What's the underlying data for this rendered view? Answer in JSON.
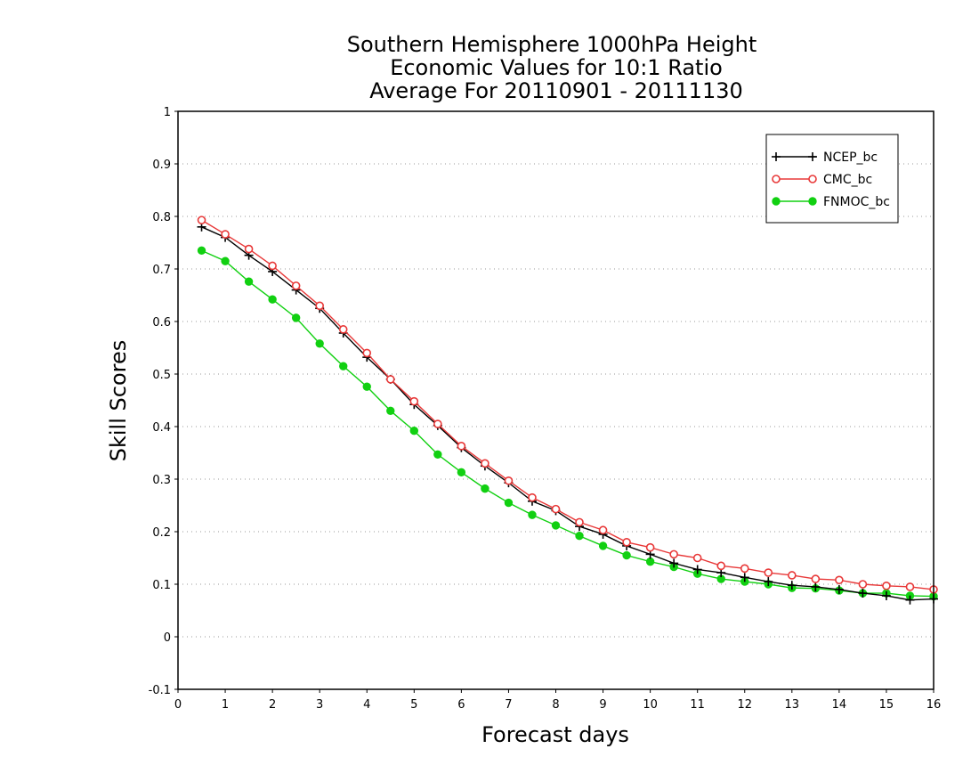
{
  "chart_data": {
    "type": "line",
    "title": [
      "Southern Hemisphere 1000hPa Height",
      "Economic Values for 10:1 Ratio",
      "Average For 20110901 - 20111130"
    ],
    "xlabel": "Forecast days",
    "ylabel": "Skill Scores",
    "xlim": [
      0,
      16
    ],
    "ylim": [
      -0.1,
      1
    ],
    "xticks": [
      "0",
      "1",
      "2",
      "3",
      "4",
      "5",
      "6",
      "7",
      "8",
      "9",
      "10",
      "11",
      "12",
      "13",
      "14",
      "15",
      "16"
    ],
    "yticks": [
      "-0.1",
      "0",
      "0.1",
      "0.2",
      "0.3",
      "0.4",
      "0.5",
      "0.6",
      "0.7",
      "0.8",
      "0.9",
      "1"
    ],
    "grid": "horizontal-dotted",
    "legend_position": "top-right",
    "x": [
      0.5,
      1,
      1.5,
      2,
      2.5,
      3,
      3.5,
      4,
      4.5,
      5,
      5.5,
      6,
      6.5,
      7,
      7.5,
      8,
      8.5,
      9,
      9.5,
      10,
      10.5,
      11,
      11.5,
      12,
      12.5,
      13,
      13.5,
      14,
      14.5,
      15,
      15.5,
      16
    ],
    "series": [
      {
        "name": "NCEP_bc",
        "color": "#000000",
        "marker": "plus",
        "values": [
          0.78,
          0.76,
          0.726,
          0.695,
          0.66,
          0.625,
          0.578,
          0.532,
          0.49,
          0.442,
          0.402,
          0.36,
          0.325,
          0.293,
          0.258,
          0.24,
          0.21,
          0.195,
          0.173,
          0.157,
          0.14,
          0.128,
          0.122,
          0.113,
          0.105,
          0.098,
          0.095,
          0.09,
          0.083,
          0.078,
          0.07,
          0.072
        ]
      },
      {
        "name": "CMC_bc",
        "color": "#e83838",
        "marker": "open-circle",
        "values": [
          0.793,
          0.766,
          0.738,
          0.706,
          0.668,
          0.63,
          0.585,
          0.54,
          0.49,
          0.448,
          0.405,
          0.363,
          0.33,
          0.297,
          0.265,
          0.243,
          0.218,
          0.203,
          0.18,
          0.17,
          0.157,
          0.15,
          0.135,
          0.13,
          0.122,
          0.117,
          0.11,
          0.108,
          0.1,
          0.097,
          0.095,
          0.09
        ]
      },
      {
        "name": "FNMOC_bc",
        "color": "#11d011",
        "marker": "filled-circle",
        "values": [
          0.735,
          0.715,
          0.676,
          0.642,
          0.607,
          0.558,
          0.515,
          0.476,
          0.43,
          0.392,
          0.347,
          0.313,
          0.282,
          0.255,
          0.232,
          0.212,
          0.192,
          0.173,
          0.155,
          0.143,
          0.133,
          0.12,
          0.11,
          0.105,
          0.1,
          0.093,
          0.092,
          0.088,
          0.083,
          0.083,
          0.078,
          0.077
        ]
      }
    ]
  }
}
